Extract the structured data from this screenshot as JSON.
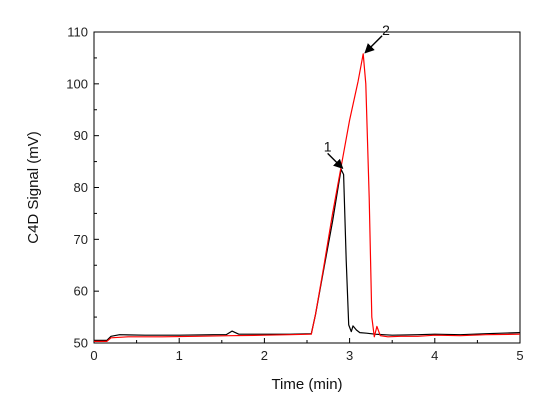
{
  "chart_data": {
    "type": "line",
    "title": "",
    "xlabel": "Time (min)",
    "ylabel": "C4D Signal (mV)",
    "xlim": [
      0,
      5
    ],
    "ylim": [
      50,
      110
    ],
    "xticks": [
      "0",
      "1",
      "2",
      "3",
      "4",
      "5"
    ],
    "yticks": [
      "50",
      "60",
      "70",
      "80",
      "90",
      "100",
      "110"
    ],
    "grid": false,
    "legend": "none",
    "series": [
      {
        "color": "#000000",
        "x": [
          0,
          0.15,
          0.2,
          0.3,
          0.6,
          1.0,
          1.4,
          1.55,
          1.62,
          1.7,
          2.0,
          2.3,
          2.55,
          2.6,
          2.7,
          2.8,
          2.87,
          2.9,
          2.93,
          2.96,
          2.99,
          3.02,
          3.04,
          3.08,
          3.12,
          3.2,
          3.3,
          3.5,
          3.8,
          4.0,
          4.3,
          4.6,
          5.0
        ],
        "y": [
          50.5,
          50.5,
          51.3,
          51.6,
          51.5,
          51.5,
          51.6,
          51.6,
          52.3,
          51.7,
          51.7,
          51.7,
          51.8,
          55.5,
          64.5,
          73.5,
          80.5,
          83.5,
          82.5,
          66,
          53.5,
          52.2,
          53.3,
          52.5,
          52.0,
          51.9,
          51.7,
          51.5,
          51.6,
          51.7,
          51.6,
          51.8,
          52.0
        ]
      },
      {
        "color": "#ff0000",
        "x": [
          0,
          0.15,
          0.2,
          0.4,
          0.8,
          1.2,
          1.6,
          2.0,
          2.3,
          2.55,
          2.6,
          2.7,
          2.8,
          2.9,
          3.0,
          3.1,
          3.16,
          3.19,
          3.23,
          3.26,
          3.29,
          3.32,
          3.36,
          3.45,
          3.6,
          3.8,
          4.0,
          4.3,
          4.6,
          5.0
        ],
        "y": [
          50.3,
          50.3,
          51.0,
          51.2,
          51.2,
          51.3,
          51.4,
          51.5,
          51.6,
          51.7,
          55.5,
          65,
          75,
          84,
          93,
          100.5,
          105.8,
          100,
          78,
          55,
          51.2,
          53.2,
          51.4,
          51.2,
          51.3,
          51.3,
          51.5,
          51.4,
          51.6,
          51.7
        ]
      }
    ],
    "annotations": [
      {
        "label": "1",
        "x": 2.93,
        "y": 83.5
      },
      {
        "label": "2",
        "x": 3.17,
        "y": 105.8
      }
    ]
  }
}
